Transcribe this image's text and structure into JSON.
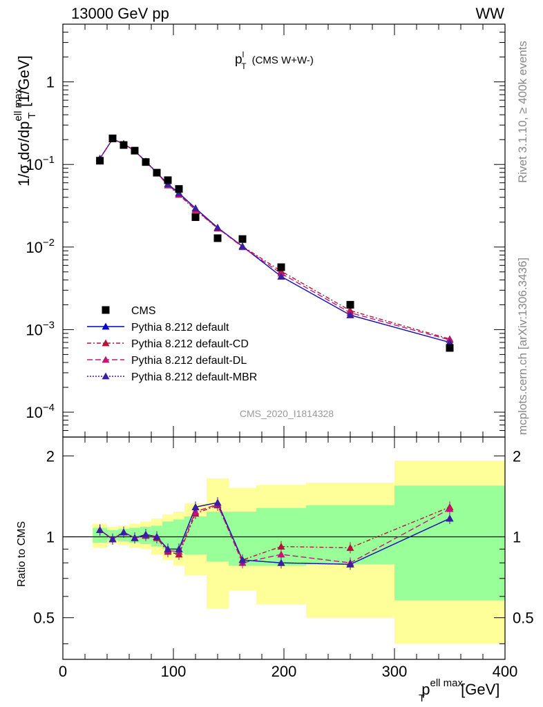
{
  "header": {
    "left_label": "13000 GeV pp",
    "right_label": "WW"
  },
  "side_text": {
    "rivet": "Rivet 3.1.10, ≥ 400k events",
    "mcplots": "mcplots.cern.ch [arXiv:1306.3436]"
  },
  "chart_data": {
    "type": "scatter",
    "title": {
      "main": "p",
      "sup": "l",
      "sub": "T",
      "suffix": "(CMS W+W-)"
    },
    "analysis_id": "CMS_2020_I1814328",
    "xlabel": {
      "main": "p",
      "sup": "ell max",
      "sub": "T",
      "suffix": "[GeV]"
    },
    "ylabel": {
      "prefix": "1/σ dσ/dp",
      "sup": "ell max",
      "sub": "T",
      "suffix": "[1/GeV]"
    },
    "ratio_ylabel": "Ratio to CMS",
    "xlim": [
      0,
      400
    ],
    "ylim": [
      5e-05,
      5.0
    ],
    "yscale": "log",
    "ratio_ylim": [
      0.35,
      2.35
    ],
    "ratio_yscale": "log",
    "x_ticks": [
      "0",
      "100",
      "200",
      "300",
      "400"
    ],
    "y_ticks": [
      {
        "base": "10",
        "exp": "−4",
        "v": 0.0001
      },
      {
        "base": "10",
        "exp": "−3",
        "v": 0.001
      },
      {
        "base": "10",
        "exp": "−2",
        "v": 0.01
      },
      {
        "base": "10",
        "exp": "−1",
        "v": 0.1
      },
      {
        "base": "1",
        "exp": "",
        "v": 1
      }
    ],
    "ratio_ticks": [
      {
        "label": "0.5",
        "v": 0.5
      },
      {
        "label": "1",
        "v": 1
      },
      {
        "label": "2",
        "v": 2
      }
    ],
    "legend": [
      "CMS",
      "Pythia 8.212 default",
      "Pythia 8.212 default-CD",
      "Pythia 8.212 default-DL",
      "Pythia 8.212 default-MBR"
    ],
    "data": {
      "name": "CMS",
      "bins": [
        [
          27,
          40
        ],
        [
          40,
          50
        ],
        [
          50,
          60
        ],
        [
          60,
          70
        ],
        [
          70,
          80
        ],
        [
          80,
          90
        ],
        [
          90,
          100
        ],
        [
          100,
          110
        ],
        [
          110,
          130
        ],
        [
          130,
          150
        ],
        [
          150,
          175
        ],
        [
          175,
          220
        ],
        [
          220,
          300
        ],
        [
          300,
          400
        ]
      ],
      "x": [
        33.5,
        45,
        55,
        65,
        75,
        85,
        95,
        105,
        120,
        140,
        162.5,
        197.5,
        260,
        350
      ],
      "y": [
        0.111,
        0.207,
        0.172,
        0.147,
        0.107,
        0.0795,
        0.0645,
        0.0505,
        0.023,
        0.0128,
        0.0125,
        0.0057,
        0.002,
        0.0006
      ],
      "band_inner": [
        [
          0.95,
          1.08
        ],
        [
          0.97,
          1.06
        ],
        [
          0.96,
          1.07
        ],
        [
          0.95,
          1.08
        ],
        [
          0.94,
          1.09
        ],
        [
          0.92,
          1.1
        ],
        [
          0.9,
          1.14
        ],
        [
          0.87,
          1.16
        ],
        [
          0.86,
          1.19
        ],
        [
          0.81,
          1.24
        ],
        [
          0.78,
          1.24
        ],
        [
          0.78,
          1.28
        ],
        [
          0.79,
          1.31
        ],
        [
          0.58,
          1.55
        ]
      ],
      "band_outer": [
        [
          0.91,
          1.12
        ],
        [
          0.94,
          1.09
        ],
        [
          0.93,
          1.1
        ],
        [
          0.91,
          1.12
        ],
        [
          0.9,
          1.14
        ],
        [
          0.86,
          1.17
        ],
        [
          0.82,
          1.21
        ],
        [
          0.78,
          1.24
        ],
        [
          0.72,
          1.33
        ],
        [
          0.54,
          1.65
        ],
        [
          0.63,
          1.52
        ],
        [
          0.56,
          1.56
        ],
        [
          0.5,
          1.59
        ],
        [
          0.4,
          1.92
        ]
      ]
    },
    "series": [
      {
        "name": "Pythia 8.212 default",
        "color": "#0000cc",
        "dash": "",
        "marker": "triangle",
        "values": [
          0.118,
          0.203,
          0.178,
          0.146,
          0.109,
          0.0795,
          0.058,
          0.045,
          0.0295,
          0.0172,
          0.0102,
          0.0044,
          0.0015,
          0.0007
        ],
        "ratio": [
          1.06,
          0.98,
          1.04,
          0.99,
          1.02,
          1.0,
          0.9,
          0.9,
          1.29,
          1.34,
          0.82,
          0.8,
          0.79,
          1.17
        ]
      },
      {
        "name": "Pythia 8.212 default-CD",
        "color": "#b2143c",
        "dash": "6,3,2,3",
        "marker": "triangle",
        "values": [
          0.118,
          0.203,
          0.178,
          0.146,
          0.108,
          0.079,
          0.056,
          0.043,
          0.028,
          0.0168,
          0.0102,
          0.0051,
          0.0017,
          0.00077
        ],
        "ratio": [
          1.06,
          0.98,
          1.04,
          0.99,
          1.01,
          0.99,
          0.88,
          0.86,
          1.22,
          1.31,
          0.82,
          0.92,
          0.91,
          1.29
        ]
      },
      {
        "name": "Pythia 8.212 default-DL",
        "color": "#c0167a",
        "dash": "8,4",
        "marker": "triangle",
        "values": [
          0.118,
          0.203,
          0.178,
          0.146,
          0.108,
          0.0792,
          0.0565,
          0.044,
          0.0285,
          0.017,
          0.01,
          0.0048,
          0.0016,
          0.00075
        ],
        "ratio": [
          1.06,
          0.98,
          1.04,
          0.99,
          1.01,
          1.0,
          0.89,
          0.88,
          1.24,
          1.32,
          0.8,
          0.86,
          0.8,
          1.27
        ]
      },
      {
        "name": "Pythia 8.212 default-MBR",
        "color": "#3a1fa0",
        "dash": "2,2",
        "marker": "triangle",
        "values": [
          0.118,
          0.203,
          0.178,
          0.146,
          0.109,
          0.0795,
          0.058,
          0.045,
          0.0295,
          0.0172,
          0.0102,
          0.0044,
          0.0015,
          0.0007
        ],
        "ratio": [
          1.06,
          0.98,
          1.04,
          0.99,
          1.02,
          1.0,
          0.9,
          0.9,
          1.29,
          1.34,
          0.82,
          0.8,
          0.79,
          1.17
        ]
      }
    ],
    "colors": {
      "band_inner": "#99ff99",
      "band_outer": "#ffff99",
      "data": "#000000"
    }
  }
}
